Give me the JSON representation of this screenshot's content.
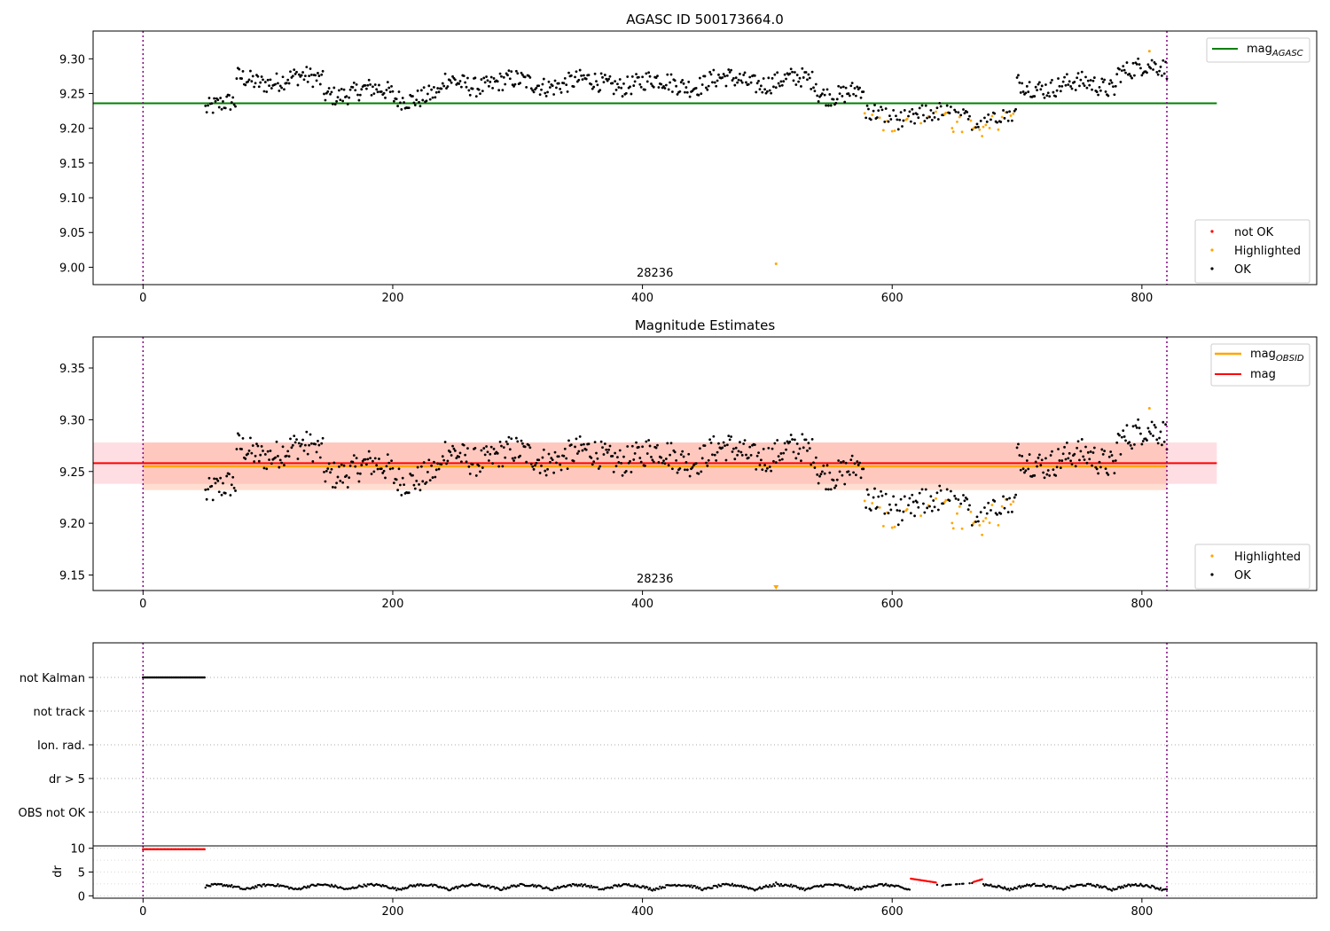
{
  "chart_data": [
    {
      "type": "scatter",
      "title": "AGASC ID 500173664.0",
      "xlim": [
        -40,
        940
      ],
      "ylim": [
        8.975,
        9.34
      ],
      "xticks": [
        "0",
        "200",
        "400",
        "600",
        "800"
      ],
      "yticks": [
        "9.00",
        "9.05",
        "9.10",
        "9.15",
        "9.20",
        "9.25",
        "9.30"
      ],
      "x_range": [
        50,
        820
      ],
      "obsid_bounds": [
        0,
        820
      ],
      "annotation": {
        "text": "28236",
        "x": 410
      },
      "reference_lines": [
        {
          "name": "mag_AGASC",
          "legend_main": "mag",
          "legend_sub": "AGASC",
          "value": 9.236,
          "color": "#008000",
          "x_end": 860
        }
      ],
      "legend_lines_position": "upper right",
      "legend_points_position": "lower right",
      "legend_points": [
        {
          "label": "not OK",
          "color": "#ff0000"
        },
        {
          "label": "Highlighted",
          "color": "#ffa500"
        },
        {
          "label": "OK",
          "color": "#000000"
        }
      ],
      "outlier": {
        "x": 507,
        "y": 9.005,
        "color": "#ffa500"
      }
    },
    {
      "type": "scatter",
      "title": "Magnitude Estimates",
      "xlim": [
        -40,
        940
      ],
      "ylim": [
        9.135,
        9.38
      ],
      "xticks": [
        "0",
        "200",
        "400",
        "600",
        "800"
      ],
      "yticks": [
        "9.15",
        "9.20",
        "9.25",
        "9.30",
        "9.35"
      ],
      "annotation": {
        "text": "28236",
        "x": 410
      },
      "reference_lines": [
        {
          "name": "mag_OBSID",
          "legend_main": "mag",
          "legend_sub": "OBSID",
          "value": 9.255,
          "color": "#ffa500",
          "band": [
            9.232,
            9.278
          ],
          "band_color": "#ffa07a",
          "x_end": 820
        },
        {
          "name": "mag",
          "legend_main": "mag",
          "legend_sub": "",
          "value": 9.258,
          "color": "#ff0000",
          "band": [
            9.238,
            9.278
          ],
          "band_color": "#ffb6c1",
          "x_end": 860
        }
      ],
      "legend_points": [
        {
          "label": "Highlighted",
          "color": "#ffa500"
        },
        {
          "label": "OK",
          "color": "#000000"
        }
      ],
      "outlier_marker": {
        "x": 507,
        "color": "#ffa500"
      }
    },
    {
      "type": "scatter",
      "title": "",
      "xlim": [
        -40,
        940
      ],
      "flag_rows": [
        "not Kalman",
        "not track",
        "Ion. rad.",
        "dr > 5",
        "OBS not OK"
      ],
      "not_kalman_range": [
        0,
        50
      ],
      "dr_ylabel": "dr",
      "dr_ylim": [
        -0.5,
        10.5
      ],
      "dr_yticks": [
        "0",
        "5",
        "10"
      ],
      "xticks": [
        "0",
        "200",
        "400",
        "600",
        "800"
      ],
      "dr_high_range": [
        0,
        50
      ],
      "dr_red_segments": [
        [
          615,
          635
        ],
        [
          665,
          672
        ]
      ]
    }
  ]
}
